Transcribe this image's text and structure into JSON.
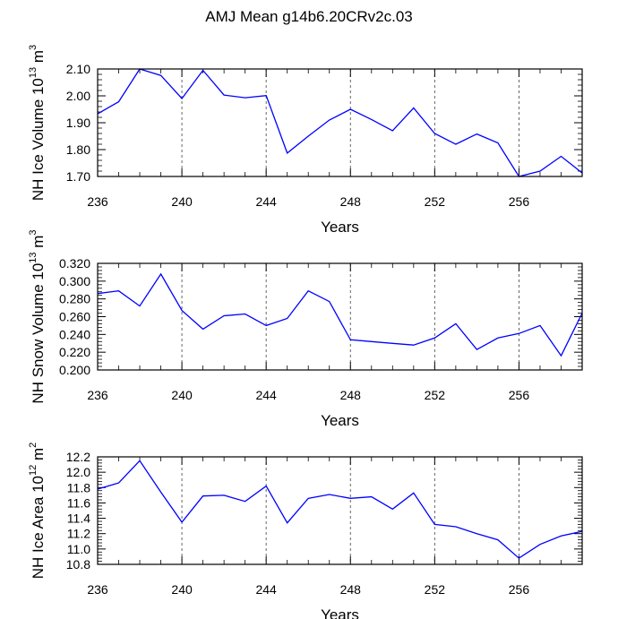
{
  "title": "AMJ Mean g14b6.20CRv2c.03",
  "line_color": "#0000ff",
  "chart_data": [
    {
      "type": "line",
      "ylabel": "NH Ice Volume 10",
      "ylabel_exp": "13",
      "ylabel_unit": " m",
      "ylabel_unit_exp": "3",
      "xlabel": "Years",
      "xlim": [
        236,
        259
      ],
      "ylim": [
        1.7,
        2.1
      ],
      "yticks": [
        "1.70",
        "1.80",
        "1.90",
        "2.00",
        "2.10"
      ],
      "xticks": [
        "236",
        "240",
        "244",
        "248",
        "252",
        "256"
      ],
      "x": [
        236,
        237,
        238,
        239,
        240,
        241,
        242,
        243,
        244,
        245,
        246,
        247,
        248,
        249,
        250,
        251,
        252,
        253,
        254,
        255,
        256,
        257,
        258,
        259
      ],
      "values": [
        1.933,
        1.978,
        2.1,
        2.076,
        1.99,
        2.095,
        2.003,
        1.993,
        2.001,
        1.787,
        1.85,
        1.91,
        1.95,
        1.912,
        1.87,
        1.955,
        1.86,
        1.82,
        1.858,
        1.825,
        1.7,
        1.72,
        1.775,
        1.713
      ]
    },
    {
      "type": "line",
      "ylabel": "NH Snow Volume 10",
      "ylabel_exp": "13",
      "ylabel_unit": " m",
      "ylabel_unit_exp": "3",
      "xlabel": "Years",
      "xlim": [
        236,
        259
      ],
      "ylim": [
        0.2,
        0.32
      ],
      "yticks": [
        "0.200",
        "0.220",
        "0.240",
        "0.260",
        "0.280",
        "0.300",
        "0.320"
      ],
      "xticks": [
        "236",
        "240",
        "244",
        "248",
        "252",
        "256"
      ],
      "x": [
        236,
        237,
        238,
        239,
        240,
        241,
        242,
        243,
        244,
        245,
        246,
        247,
        248,
        249,
        250,
        251,
        252,
        253,
        254,
        255,
        256,
        257,
        258,
        259
      ],
      "values": [
        0.286,
        0.289,
        0.272,
        0.308,
        0.267,
        0.246,
        0.261,
        0.263,
        0.25,
        0.258,
        0.289,
        0.277,
        0.234,
        0.232,
        0.23,
        0.228,
        0.236,
        0.252,
        0.223,
        0.236,
        0.241,
        0.25,
        0.216,
        0.264
      ]
    },
    {
      "type": "line",
      "ylabel": "NH Ice Area 10",
      "ylabel_exp": "12",
      "ylabel_unit": " m",
      "ylabel_unit_exp": "2",
      "xlabel": "Years",
      "xlim": [
        236,
        259
      ],
      "ylim": [
        10.8,
        12.2
      ],
      "yticks": [
        "10.8",
        "11.0",
        "11.2",
        "11.4",
        "11.6",
        "11.8",
        "12.0",
        "12.2"
      ],
      "xticks": [
        "236",
        "240",
        "244",
        "248",
        "252",
        "256"
      ],
      "x": [
        236,
        237,
        238,
        239,
        240,
        241,
        242,
        243,
        244,
        245,
        246,
        247,
        248,
        249,
        250,
        251,
        252,
        253,
        254,
        255,
        256,
        257,
        258,
        259
      ],
      "values": [
        11.78,
        11.86,
        12.15,
        11.74,
        11.35,
        11.69,
        11.7,
        11.62,
        11.82,
        11.34,
        11.66,
        11.71,
        11.66,
        11.68,
        11.52,
        11.73,
        11.32,
        11.29,
        11.2,
        11.12,
        10.88,
        11.06,
        11.17,
        11.23
      ]
    }
  ]
}
